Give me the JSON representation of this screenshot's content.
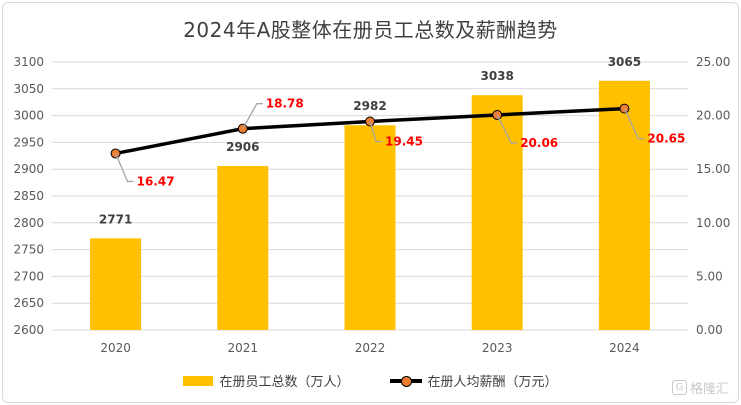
{
  "title": "2024年A股整体在册员工总数及薪酬趋势",
  "watermark": {
    "text": "格隆汇",
    "icon": "G"
  },
  "colors": {
    "bar": "#ffc000",
    "line": "#000000",
    "marker": "#ed7d31",
    "salary_label": "#ff0000",
    "axis_text": "#595959",
    "grid": "#d9d9d9",
    "leader": "#a6a6a6"
  },
  "legend": {
    "bar_label": "在册员工总数（万人）",
    "line_label": "在册人均薪酬（万元）"
  },
  "chart_data": {
    "type": "bar",
    "categories": [
      "2020",
      "2021",
      "2022",
      "2023",
      "2024"
    ],
    "series": [
      {
        "name": "在册员工总数（万人）",
        "type": "bar",
        "axis": "left",
        "values": [
          2771,
          2906,
          2982,
          3038,
          3065
        ],
        "labels": [
          "2771",
          "2906",
          "2982",
          "3038",
          "3065"
        ]
      },
      {
        "name": "在册人均薪酬（万元）",
        "type": "line",
        "axis": "right",
        "values": [
          16.47,
          18.78,
          19.45,
          20.06,
          20.65
        ],
        "labels": [
          "16.47",
          "18.78",
          "19.45",
          "20.06",
          "20.65"
        ]
      }
    ],
    "y_left": {
      "min": 2600,
      "max": 3100,
      "step": 50,
      "ticks": [
        "2600",
        "2650",
        "2700",
        "2750",
        "2800",
        "2850",
        "2900",
        "2950",
        "3000",
        "3050",
        "3100"
      ]
    },
    "y_right": {
      "min": 0,
      "max": 25,
      "step": 5,
      "ticks": [
        "0.00",
        "5.00",
        "10.00",
        "15.00",
        "20.00",
        "25.00"
      ]
    },
    "grid": true,
    "legend_position": "bottom"
  }
}
